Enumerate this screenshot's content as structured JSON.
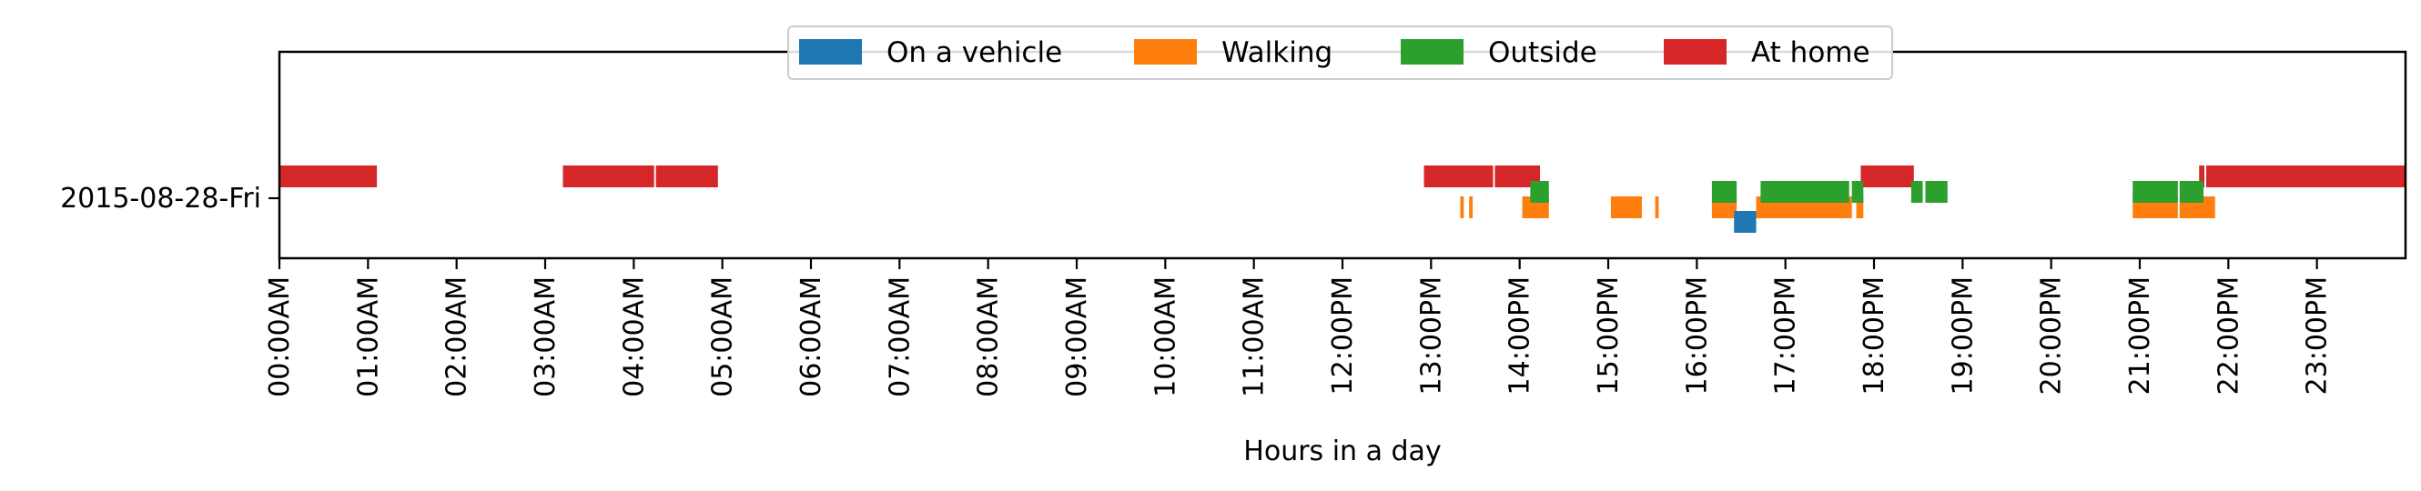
{
  "chart_data": {
    "type": "timeline",
    "title": "",
    "xlabel": "Hours in a day",
    "ylabel": "",
    "x_unit": "hours",
    "xlim": [
      0,
      24
    ],
    "grid": false,
    "legend_placement": "upper-center",
    "rows": [
      "2015-08-28-Fri"
    ],
    "x_tick_labels": [
      "00:00AM",
      "01:00AM",
      "02:00AM",
      "03:00AM",
      "04:00AM",
      "05:00AM",
      "06:00AM",
      "07:00AM",
      "08:00AM",
      "09:00AM",
      "10:00AM",
      "11:00AM",
      "12:00PM",
      "13:00PM",
      "14:00PM",
      "15:00PM",
      "16:00PM",
      "17:00PM",
      "18:00PM",
      "19:00PM",
      "20:00PM",
      "21:00PM",
      "22:00PM",
      "23:00PM"
    ],
    "series": [
      {
        "name": "On a vehicle",
        "color": "#1f77b4",
        "intervals": [
          [
            16.42,
            16.67
          ]
        ]
      },
      {
        "name": "Walking",
        "color": "#ff7f0e",
        "intervals": [
          [
            13.33,
            13.37
          ],
          [
            13.43,
            13.47
          ],
          [
            14.03,
            14.33
          ],
          [
            15.03,
            15.38
          ],
          [
            15.53,
            15.57
          ],
          [
            16.17,
            16.45
          ],
          [
            16.67,
            17.75
          ],
          [
            17.8,
            17.88
          ],
          [
            20.92,
            21.43
          ],
          [
            21.45,
            21.85
          ]
        ]
      },
      {
        "name": "Outside",
        "color": "#2ca02c",
        "intervals": [
          [
            14.12,
            14.33
          ],
          [
            16.17,
            16.45
          ],
          [
            16.72,
            17.72
          ],
          [
            17.75,
            17.88
          ],
          [
            18.42,
            18.55
          ],
          [
            18.58,
            18.83
          ],
          [
            20.92,
            21.43
          ],
          [
            21.45,
            21.72
          ]
        ]
      },
      {
        "name": "At home",
        "color": "#d62728",
        "intervals": [
          [
            0.0,
            1.1
          ],
          [
            3.2,
            4.23
          ],
          [
            4.25,
            4.95
          ],
          [
            12.92,
            13.7
          ],
          [
            13.72,
            14.23
          ],
          [
            17.85,
            18.45
          ],
          [
            21.67,
            21.73
          ],
          [
            21.75,
            24.0
          ]
        ]
      }
    ]
  }
}
